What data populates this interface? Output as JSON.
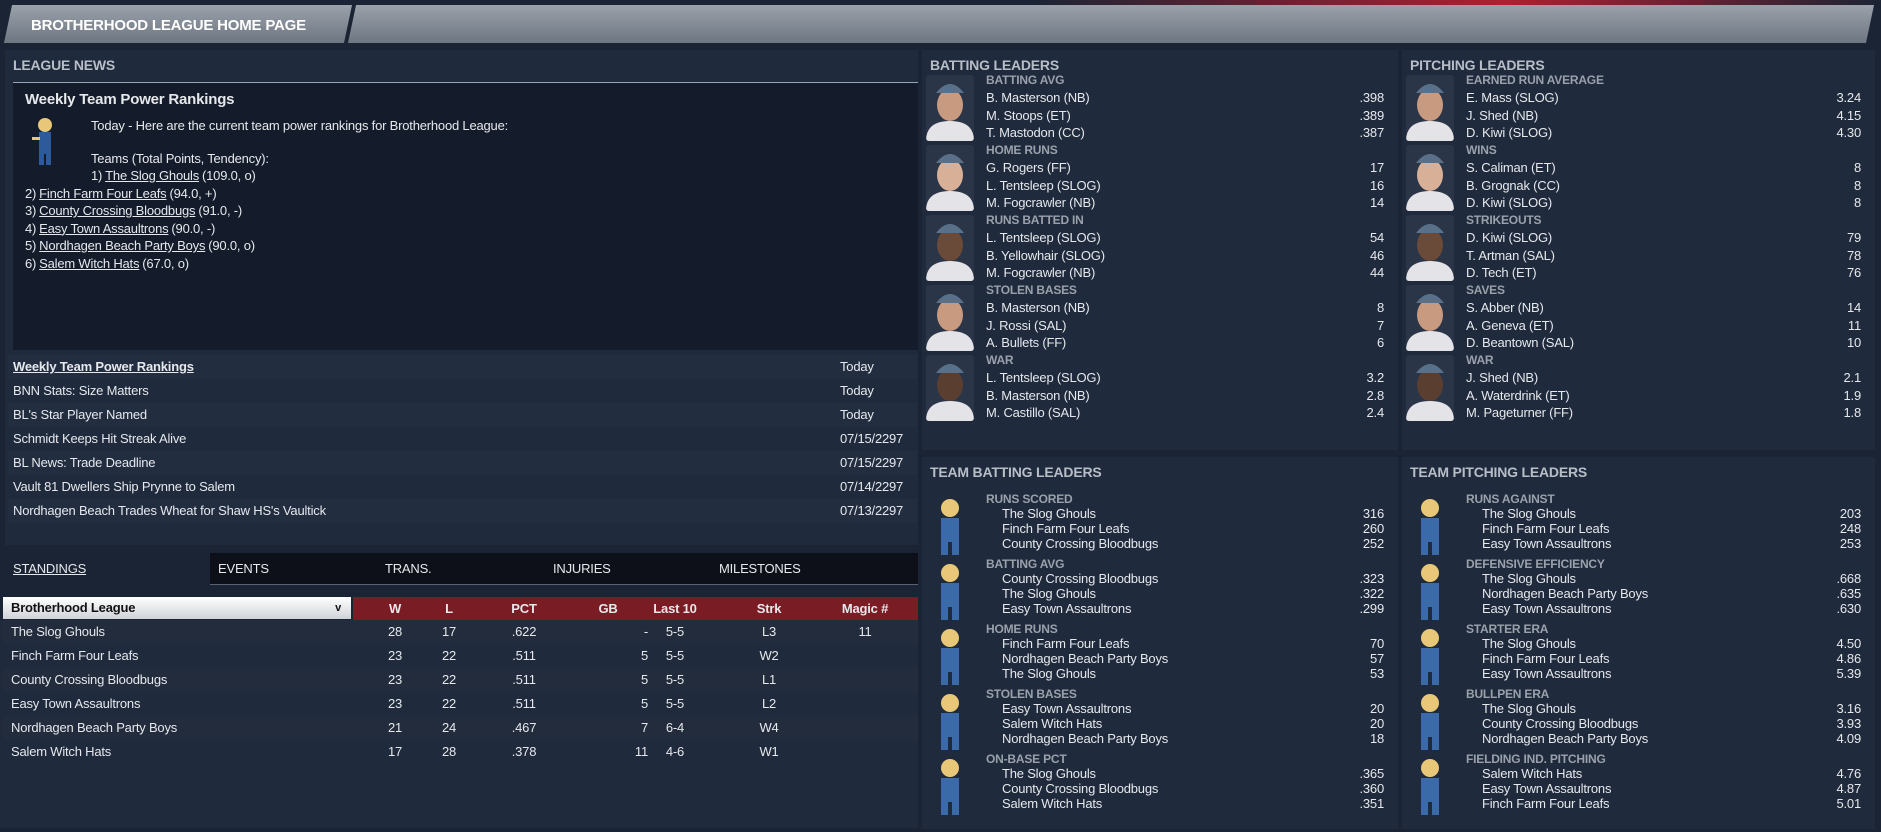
{
  "header": {
    "title": "BROTHERHOOD LEAGUE HOME PAGE"
  },
  "news": {
    "heading": "LEAGUE NEWS",
    "article": {
      "title": "Weekly Team Power Rankings",
      "intro": "Today - Here are the current team power rankings for Brotherhood League:",
      "subhead": "Teams (Total Points, Tendency):",
      "rankings": [
        {
          "rank": "1)",
          "team": "The Slog Ghouls",
          "info": "(109.0, o)"
        },
        {
          "rank": "2)",
          "team": "Finch Farm Four Leafs",
          "info": "(94.0, +)"
        },
        {
          "rank": "3)",
          "team": "County Crossing Bloodbugs",
          "info": "(91.0, -)"
        },
        {
          "rank": "4)",
          "team": "Easy Town Assaultrons",
          "info": "(90.0, -)"
        },
        {
          "rank": "5)",
          "team": "Nordhagen Beach Party Boys",
          "info": "(90.0, o)"
        },
        {
          "rank": "6)",
          "team": "Salem Witch Hats",
          "info": "(67.0, o)"
        }
      ]
    },
    "items": [
      {
        "title": "Weekly Team Power Rankings",
        "date": "Today"
      },
      {
        "title": "BNN Stats: Size Matters",
        "date": "Today"
      },
      {
        "title": "BL's Star Player Named",
        "date": "Today"
      },
      {
        "title": "Schmidt Keeps Hit Streak Alive",
        "date": "07/15/2297"
      },
      {
        "title": "BL News: Trade Deadline",
        "date": "07/15/2297"
      },
      {
        "title": "Vault 81 Dwellers Ship Prynne to Salem",
        "date": "07/14/2297"
      },
      {
        "title": "Nordhagen Beach Trades Wheat for Shaw HS's Vaultick",
        "date": "07/13/2297"
      }
    ]
  },
  "tabs": [
    "STANDINGS",
    "EVENTS",
    "TRANS.",
    "INJURIES",
    "MILESTONES"
  ],
  "standings": {
    "league_select": "Brotherhood League",
    "columns": [
      "W",
      "L",
      "PCT",
      "GB",
      "Last 10",
      "Strk",
      "Magic #"
    ],
    "rows": [
      [
        "The Slog Ghouls",
        "28",
        "17",
        ".622",
        "-",
        "5-5",
        "L3",
        "11"
      ],
      [
        "Finch Farm Four Leafs",
        "23",
        "22",
        ".511",
        "5",
        "5-5",
        "W2",
        ""
      ],
      [
        "County Crossing Bloodbugs",
        "23",
        "22",
        ".511",
        "5",
        "5-5",
        "L1",
        ""
      ],
      [
        "Easy Town Assaultrons",
        "23",
        "22",
        ".511",
        "5",
        "5-5",
        "L2",
        ""
      ],
      [
        "Nordhagen Beach Party Boys",
        "21",
        "24",
        ".467",
        "7",
        "6-4",
        "W4",
        ""
      ],
      [
        "Salem Witch Hats",
        "17",
        "28",
        ".378",
        "11",
        "4-6",
        "W1",
        ""
      ]
    ]
  },
  "batting": {
    "heading": "BATTING LEADERS",
    "groups": [
      {
        "cat": "BATTING AVG",
        "rows": [
          [
            "B. Masterson (NB)",
            ".398"
          ],
          [
            "M. Stoops (ET)",
            ".389"
          ],
          [
            "T. Mastodon (CC)",
            ".387"
          ]
        ]
      },
      {
        "cat": "HOME RUNS",
        "rows": [
          [
            "G. Rogers (FF)",
            "17"
          ],
          [
            "L. Tentsleep (SLOG)",
            "16"
          ],
          [
            "M. Fogcrawler (NB)",
            "14"
          ]
        ]
      },
      {
        "cat": "RUNS BATTED IN",
        "rows": [
          [
            "L. Tentsleep (SLOG)",
            "54"
          ],
          [
            "B. Yellowhair (SLOG)",
            "46"
          ],
          [
            "M. Fogcrawler (NB)",
            "44"
          ]
        ]
      },
      {
        "cat": "STOLEN BASES",
        "rows": [
          [
            "B. Masterson (NB)",
            "8"
          ],
          [
            "J. Rossi (SAL)",
            "7"
          ],
          [
            "A. Bullets (FF)",
            "6"
          ]
        ]
      },
      {
        "cat": "WAR",
        "rows": [
          [
            "L. Tentsleep (SLOG)",
            "3.2"
          ],
          [
            "B. Masterson (NB)",
            "2.8"
          ],
          [
            "M. Castillo (SAL)",
            "2.4"
          ]
        ]
      }
    ]
  },
  "pitching": {
    "heading": "PITCHING LEADERS",
    "groups": [
      {
        "cat": "EARNED RUN AVERAGE",
        "rows": [
          [
            "E. Mass (SLOG)",
            "3.24"
          ],
          [
            "J. Shed (NB)",
            "4.15"
          ],
          [
            "D. Kiwi (SLOG)",
            "4.30"
          ]
        ]
      },
      {
        "cat": "WINS",
        "rows": [
          [
            "S. Caliman (ET)",
            "8"
          ],
          [
            "B. Grognak (CC)",
            "8"
          ],
          [
            "D. Kiwi (SLOG)",
            "8"
          ]
        ]
      },
      {
        "cat": "STRIKEOUTS",
        "rows": [
          [
            "D. Kiwi (SLOG)",
            "79"
          ],
          [
            "T. Artman (SAL)",
            "78"
          ],
          [
            "D. Tech (ET)",
            "76"
          ]
        ]
      },
      {
        "cat": "SAVES",
        "rows": [
          [
            "S. Abber (NB)",
            "14"
          ],
          [
            "A. Geneva (ET)",
            "11"
          ],
          [
            "D. Beantown (SAL)",
            "10"
          ]
        ]
      },
      {
        "cat": "WAR",
        "rows": [
          [
            "J. Shed (NB)",
            "2.1"
          ],
          [
            "A. Waterdrink (ET)",
            "1.9"
          ],
          [
            "M. Pageturner (FF)",
            "1.8"
          ]
        ]
      }
    ]
  },
  "team_batting": {
    "heading": "TEAM BATTING LEADERS",
    "groups": [
      {
        "cat": "RUNS SCORED",
        "rows": [
          [
            "The Slog Ghouls",
            "316"
          ],
          [
            "Finch Farm Four Leafs",
            "260"
          ],
          [
            "County Crossing Bloodbugs",
            "252"
          ]
        ]
      },
      {
        "cat": "BATTING AVG",
        "rows": [
          [
            "County Crossing Bloodbugs",
            ".323"
          ],
          [
            "The Slog Ghouls",
            ".322"
          ],
          [
            "Easy Town Assaultrons",
            ".299"
          ]
        ]
      },
      {
        "cat": "HOME RUNS",
        "rows": [
          [
            "Finch Farm Four Leafs",
            "70"
          ],
          [
            "Nordhagen Beach Party Boys",
            "57"
          ],
          [
            "The Slog Ghouls",
            "53"
          ]
        ]
      },
      {
        "cat": "STOLEN BASES",
        "rows": [
          [
            "Easy Town Assaultrons",
            "20"
          ],
          [
            "Salem Witch Hats",
            "20"
          ],
          [
            "Nordhagen Beach Party Boys",
            "18"
          ]
        ]
      },
      {
        "cat": "ON-BASE PCT",
        "rows": [
          [
            "The Slog Ghouls",
            ".365"
          ],
          [
            "County Crossing Bloodbugs",
            ".360"
          ],
          [
            "Salem Witch Hats",
            ".351"
          ]
        ]
      }
    ]
  },
  "team_pitching": {
    "heading": "TEAM PITCHING LEADERS",
    "groups": [
      {
        "cat": "RUNS AGAINST",
        "rows": [
          [
            "The Slog Ghouls",
            "203"
          ],
          [
            "Finch Farm Four Leafs",
            "248"
          ],
          [
            "Easy Town Assaultrons",
            "253"
          ]
        ]
      },
      {
        "cat": "DEFENSIVE EFFICIENCY",
        "rows": [
          [
            "The Slog Ghouls",
            ".668"
          ],
          [
            "Nordhagen Beach Party Boys",
            ".635"
          ],
          [
            "Easy Town Assaultrons",
            ".630"
          ]
        ]
      },
      {
        "cat": "STARTER ERA",
        "rows": [
          [
            "The Slog Ghouls",
            "4.50"
          ],
          [
            "Finch Farm Four Leafs",
            "4.86"
          ],
          [
            "Easy Town Assaultrons",
            "5.39"
          ]
        ]
      },
      {
        "cat": "BULLPEN ERA",
        "rows": [
          [
            "The Slog Ghouls",
            "3.16"
          ],
          [
            "County Crossing Bloodbugs",
            "3.93"
          ],
          [
            "Nordhagen Beach Party Boys",
            "4.09"
          ]
        ]
      },
      {
        "cat": "FIELDING IND. PITCHING",
        "rows": [
          [
            "Salem Witch Hats",
            "4.76"
          ],
          [
            "Easy Town Assaultrons",
            "4.87"
          ],
          [
            "Finch Farm Four Leafs",
            "5.01"
          ]
        ]
      }
    ]
  },
  "colors": {
    "header_red": "#7a1c24",
    "panel": "#1f2a3c",
    "background": "#1b2434"
  }
}
